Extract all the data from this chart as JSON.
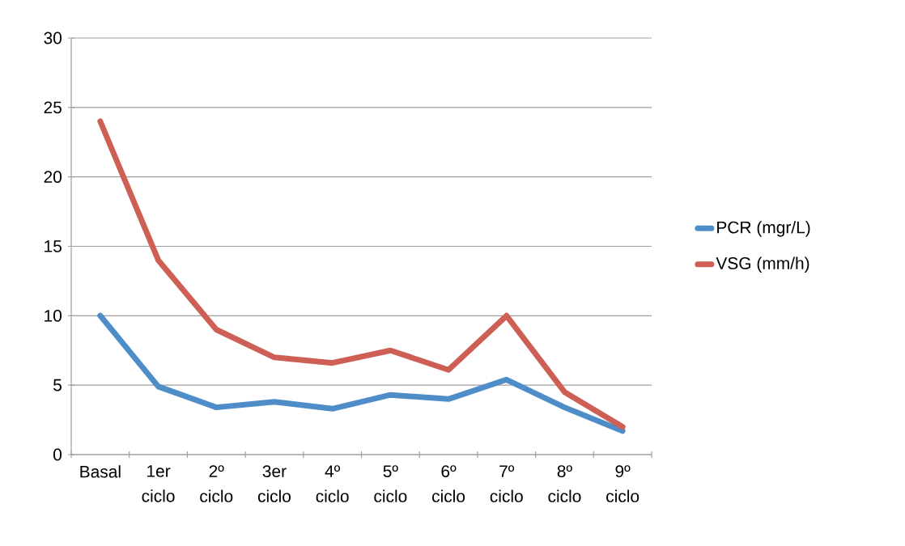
{
  "chart_data": {
    "type": "line",
    "categories": [
      "Basal",
      "1er ciclo",
      "2º ciclo",
      "3er ciclo",
      "4º ciclo",
      "5º ciclo",
      "6º ciclo",
      "7º ciclo",
      "8º ciclo",
      "9º ciclo"
    ],
    "series": [
      {
        "name": "PCR (mgr/L)",
        "color": "#4f8dc9",
        "values": [
          10,
          4.9,
          3.4,
          3.8,
          3.3,
          4.3,
          4.0,
          5.4,
          3.4,
          1.7
        ]
      },
      {
        "name": "VSG (mm/h)",
        "color": "#cd5f55",
        "values": [
          24,
          14,
          9,
          7,
          6.6,
          7.5,
          6.1,
          10,
          4.5,
          2.0
        ]
      }
    ],
    "ylim": [
      0,
      30
    ],
    "yticks": [
      0,
      5,
      10,
      15,
      20,
      25,
      30
    ],
    "grid": "y",
    "legend": "right",
    "marker": "none",
    "line_style": "solid"
  }
}
